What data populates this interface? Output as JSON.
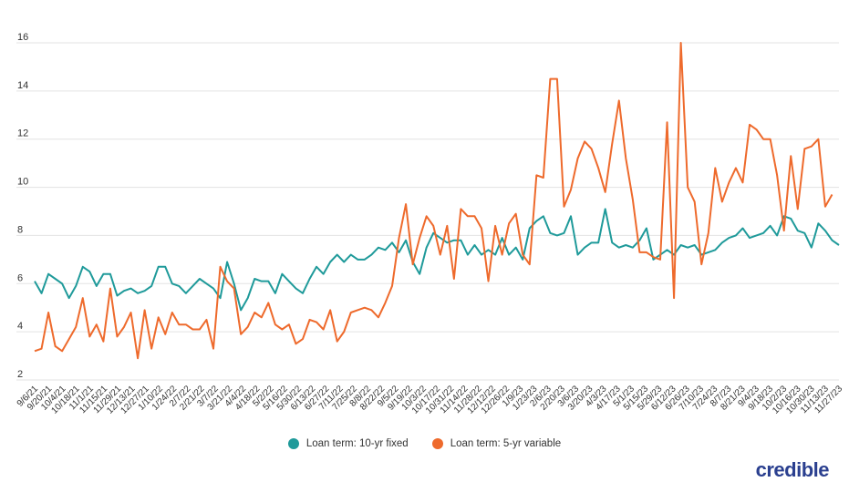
{
  "colors": {
    "series_a": "#1f9a9a",
    "series_b": "#ee6a2c",
    "grid": "#e3e3e3",
    "axis_text": "#333333"
  },
  "brand": {
    "logo_text": "credible"
  },
  "chart_data": {
    "type": "line",
    "title": "",
    "xlabel": "",
    "ylabel": "",
    "ylim": [
      2,
      16
    ],
    "yticks": [
      2,
      4,
      6,
      8,
      10,
      12,
      14,
      16
    ],
    "grid": true,
    "legend_position": "bottom-center",
    "x_tick_labels": [
      "9/6/21",
      "9/20/21",
      "10/4/21",
      "10/18/21",
      "11/1/21",
      "11/15/21",
      "11/29/21",
      "12/13/21",
      "12/27/21",
      "1/10/22",
      "1/24/22",
      "2/7/22",
      "2/21/22",
      "3/7/22",
      "3/21/22",
      "4/4/22",
      "4/18/22",
      "5/2/22",
      "5/16/22",
      "5/30/22",
      "6/13/22",
      "6/27/22",
      "7/11/22",
      "7/25/22",
      "8/8/22",
      "8/22/22",
      "9/5/22",
      "9/19/22",
      "10/3/22",
      "10/17/22",
      "10/31/22",
      "11/14/22",
      "11/28/22",
      "12/12/22",
      "12/26/22",
      "1/9/23",
      "1/23/23",
      "2/6/23",
      "2/20/23",
      "3/6/23",
      "3/20/23",
      "4/3/23",
      "4/17/23",
      "5/1/23",
      "5/15/23",
      "5/29/23",
      "6/12/23",
      "6/26/23",
      "7/10/23",
      "7/24/23",
      "8/7/23",
      "8/21/23",
      "9/4/23",
      "9/18/23",
      "10/2/23",
      "10/16/23",
      "10/30/23",
      "11/13/23",
      "11/27/23"
    ],
    "series": [
      {
        "name": "Loan term: 10-yr fixed",
        "color": "#1f9a9a",
        "values": [
          6.1,
          5.6,
          6.4,
          6.2,
          6.0,
          5.4,
          5.9,
          6.7,
          6.5,
          5.9,
          6.4,
          6.4,
          5.5,
          5.7,
          5.8,
          5.6,
          5.7,
          5.9,
          6.7,
          6.7,
          6.0,
          5.9,
          5.6,
          5.9,
          6.2,
          6.0,
          5.8,
          5.4,
          6.9,
          6.0,
          4.9,
          5.4,
          6.2,
          6.1,
          6.1,
          5.6,
          6.4,
          6.1,
          5.8,
          5.6,
          6.2,
          6.7,
          6.4,
          6.9,
          7.2,
          6.9,
          7.2,
          7.0,
          7.0,
          7.2,
          7.5,
          7.4,
          7.7,
          7.3,
          7.8,
          6.9,
          6.4,
          7.5,
          8.1,
          7.9,
          7.7,
          7.8,
          7.8,
          7.2,
          7.6,
          7.2,
          7.4,
          7.2,
          7.9,
          7.2,
          7.5,
          7.0,
          8.3,
          8.6,
          8.8,
          8.1,
          8.0,
          8.1,
          8.8,
          7.2,
          7.5,
          7.7,
          7.7,
          9.1,
          7.7,
          7.5,
          7.6,
          7.5,
          7.8,
          8.3,
          7.0,
          7.2,
          7.4,
          7.2,
          7.6,
          7.5,
          7.6,
          7.2,
          7.3,
          7.4,
          7.7,
          7.9,
          8.0,
          8.3,
          7.9,
          8.0,
          8.1,
          8.4,
          8.0,
          8.8,
          8.7,
          8.2,
          8.1,
          7.5,
          8.5,
          8.2,
          7.8,
          7.6
        ]
      },
      {
        "name": "Loan term: 5-yr variable",
        "color": "#ee6a2c",
        "values": [
          3.2,
          3.3,
          4.8,
          3.4,
          3.2,
          3.7,
          4.2,
          5.4,
          3.8,
          4.3,
          3.6,
          5.8,
          3.8,
          4.2,
          4.8,
          2.9,
          4.9,
          3.3,
          4.6,
          3.9,
          4.8,
          4.3,
          4.3,
          4.1,
          4.1,
          4.5,
          3.3,
          6.7,
          6.1,
          5.8,
          3.9,
          4.2,
          4.8,
          4.6,
          5.2,
          4.3,
          4.1,
          4.3,
          3.5,
          3.7,
          4.5,
          4.4,
          4.1,
          4.9,
          3.6,
          4.0,
          4.8,
          4.9,
          5.0,
          4.9,
          4.6,
          5.2,
          5.9,
          7.9,
          9.3,
          6.8,
          7.9,
          8.8,
          8.4,
          7.2,
          8.4,
          6.2,
          9.1,
          8.8,
          8.8,
          8.3,
          6.1,
          8.4,
          7.2,
          8.5,
          8.9,
          7.2,
          6.8,
          10.5,
          10.4,
          14.5,
          14.5,
          9.2,
          9.9,
          11.2,
          11.9,
          11.6,
          10.8,
          9.8,
          11.8,
          13.6,
          11.2,
          9.5,
          7.3,
          7.3,
          7.1,
          7.0,
          12.7,
          5.4,
          16.0,
          10.0,
          9.4,
          6.8,
          8.1,
          10.8,
          9.4,
          10.2,
          10.8,
          10.2,
          12.6,
          12.4,
          12.0,
          12.0,
          10.5,
          8.2,
          11.3,
          9.1,
          11.6,
          11.7,
          12.0,
          9.2,
          9.7
        ]
      }
    ]
  }
}
